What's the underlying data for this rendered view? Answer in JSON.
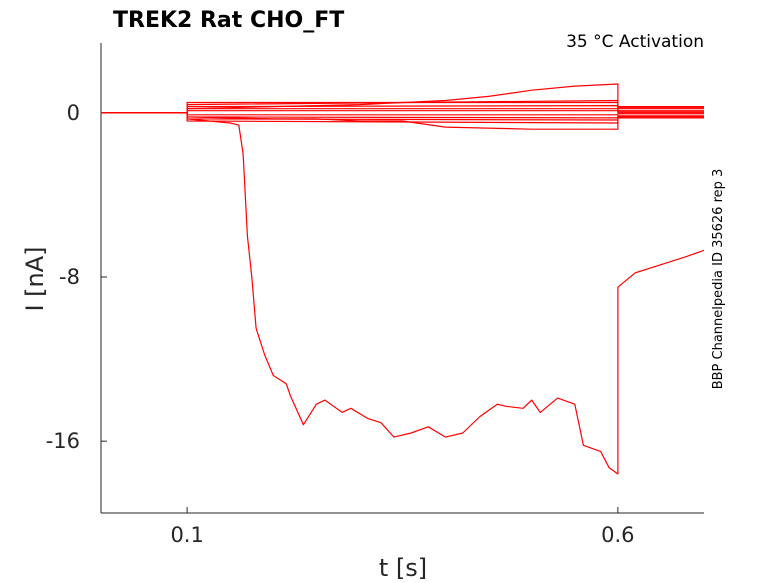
{
  "chart_data": {
    "type": "line",
    "title": "TREK2  Rat  CHO_FT",
    "annotation": "35 °C  Activation",
    "side_label": "BBP Channelpedia ID 35626 rep 3",
    "xlabel": "t [s]",
    "ylabel": "I [nA]",
    "xlim": [
      0.0,
      0.7
    ],
    "ylim": [
      -19.5,
      3.4
    ],
    "xticks": [
      {
        "value": 0.1,
        "label": "0.1"
      },
      {
        "value": 0.6,
        "label": "0.6"
      }
    ],
    "yticks": [
      {
        "value": 0,
        "label": "0"
      },
      {
        "value": -8,
        "label": "-8"
      },
      {
        "value": -16,
        "label": "-16"
      }
    ],
    "grid": false,
    "color": "#ff0000",
    "series": [
      {
        "x": [
          0.0,
          0.1,
          0.1,
          0.6,
          0.6,
          0.7
        ],
        "y": [
          0.0,
          0.0,
          0.5,
          0.5,
          0.25,
          0.25
        ]
      },
      {
        "x": [
          0.0,
          0.1,
          0.1,
          0.6,
          0.6,
          0.7
        ],
        "y": [
          0.0,
          0.0,
          0.4,
          0.6,
          0.2,
          0.2
        ]
      },
      {
        "x": [
          0.0,
          0.1,
          0.1,
          0.6,
          0.6,
          0.7
        ],
        "y": [
          0.0,
          0.0,
          0.3,
          0.35,
          0.1,
          0.1
        ]
      },
      {
        "x": [
          0.0,
          0.1,
          0.1,
          0.6,
          0.6,
          0.7
        ],
        "y": [
          0.0,
          0.0,
          0.2,
          0.2,
          0.05,
          0.05
        ]
      },
      {
        "x": [
          0.0,
          0.1,
          0.1,
          0.6,
          0.6,
          0.7
        ],
        "y": [
          0.0,
          0.0,
          0.1,
          0.1,
          0.0,
          0.0
        ]
      },
      {
        "x": [
          0.0,
          0.1,
          0.1,
          0.6,
          0.6,
          0.7
        ],
        "y": [
          0.0,
          0.0,
          -0.1,
          -0.1,
          -0.05,
          -0.05
        ]
      },
      {
        "x": [
          0.0,
          0.1,
          0.1,
          0.6,
          0.6,
          0.7
        ],
        "y": [
          0.0,
          0.0,
          -0.2,
          -0.25,
          -0.15,
          -0.15
        ]
      },
      {
        "x": [
          0.0,
          0.1,
          0.1,
          0.6,
          0.6,
          0.7
        ],
        "y": [
          0.0,
          0.0,
          -0.3,
          -0.35,
          -0.2,
          -0.2
        ]
      },
      {
        "x": [
          0.0,
          0.1,
          0.1,
          0.6,
          0.6,
          0.7
        ],
        "y": [
          0.0,
          0.0,
          -0.4,
          -0.5,
          -0.25,
          -0.25
        ]
      },
      {
        "x": [
          0.0,
          0.1,
          0.1,
          0.2,
          0.3,
          0.4,
          0.45,
          0.5,
          0.55,
          0.6,
          0.6,
          0.7
        ],
        "y": [
          0.0,
          0.0,
          0.2,
          0.3,
          0.4,
          0.6,
          0.8,
          1.1,
          1.3,
          1.4,
          0.3,
          0.3
        ]
      },
      {
        "x": [
          0.0,
          0.1,
          0.1,
          0.2,
          0.25,
          0.3,
          0.35,
          0.4,
          0.5,
          0.55,
          0.6,
          0.6,
          0.7
        ],
        "y": [
          0.0,
          0.0,
          -0.2,
          -0.3,
          -0.3,
          -0.4,
          -0.4,
          -0.7,
          -0.8,
          -0.8,
          -0.8,
          -0.2,
          -0.2
        ]
      },
      {
        "x": [
          0.0,
          0.1,
          0.1,
          0.15,
          0.16,
          0.165,
          0.17,
          0.175,
          0.18,
          0.19,
          0.2,
          0.215,
          0.22,
          0.235,
          0.25,
          0.26,
          0.27,
          0.28,
          0.29,
          0.31,
          0.325,
          0.34,
          0.36,
          0.38,
          0.4,
          0.42,
          0.44,
          0.46,
          0.47,
          0.49,
          0.5,
          0.51,
          0.53,
          0.55,
          0.56,
          0.58,
          0.59,
          0.6,
          0.6,
          0.62,
          0.65,
          0.68,
          0.7
        ],
        "y": [
          0.0,
          0.0,
          -0.3,
          -0.5,
          -0.6,
          -2.0,
          -6.0,
          -8.0,
          -10.5,
          -11.8,
          -12.8,
          -13.2,
          -13.8,
          -15.2,
          -14.2,
          -14.0,
          -14.3,
          -14.6,
          -14.4,
          -14.9,
          -15.1,
          -15.8,
          -15.6,
          -15.3,
          -15.8,
          -15.6,
          -14.8,
          -14.2,
          -14.3,
          -14.4,
          -14.0,
          -14.6,
          -13.9,
          -14.2,
          -16.2,
          -16.5,
          -17.3,
          -17.6,
          -8.5,
          -7.8,
          -7.4,
          -7.0,
          -6.7
        ]
      }
    ]
  }
}
